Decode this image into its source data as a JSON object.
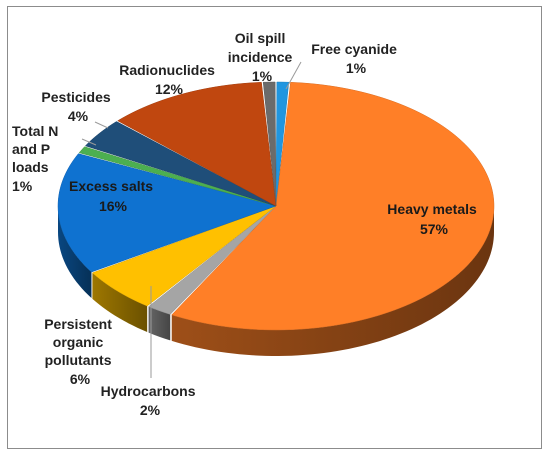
{
  "chart_data": {
    "type": "pie",
    "style": "3d-exploded",
    "title": "",
    "start_angle_deg": 0,
    "direction": "clockwise",
    "slices": [
      {
        "name": "Free cyanide",
        "value": 1,
        "label": "1%",
        "color": "#2196e0"
      },
      {
        "name": "Heavy metals",
        "value": 57,
        "label": "57%",
        "color": "#ff7f27"
      },
      {
        "name": "Hydrocarbons",
        "value": 2,
        "label": "2%",
        "color": "#a5a5a5"
      },
      {
        "name": "Persistent organic pollutants",
        "value": 6,
        "label": "6%",
        "color": "#ffc000"
      },
      {
        "name": "Excess salts",
        "value": 16,
        "label": "16%",
        "color": "#0f72d0"
      },
      {
        "name": "Total N and P loads",
        "value": 1,
        "label": "1%",
        "color": "#4caf50"
      },
      {
        "name": "Pesticides",
        "value": 4,
        "label": "4%",
        "color": "#1f4e79"
      },
      {
        "name": "Radionuclides",
        "value": 12,
        "label": "12%",
        "color": "#c0470f"
      },
      {
        "name": "Oil spill incidence",
        "value": 1,
        "label": "1%",
        "color": "#6b6b6b"
      }
    ]
  }
}
